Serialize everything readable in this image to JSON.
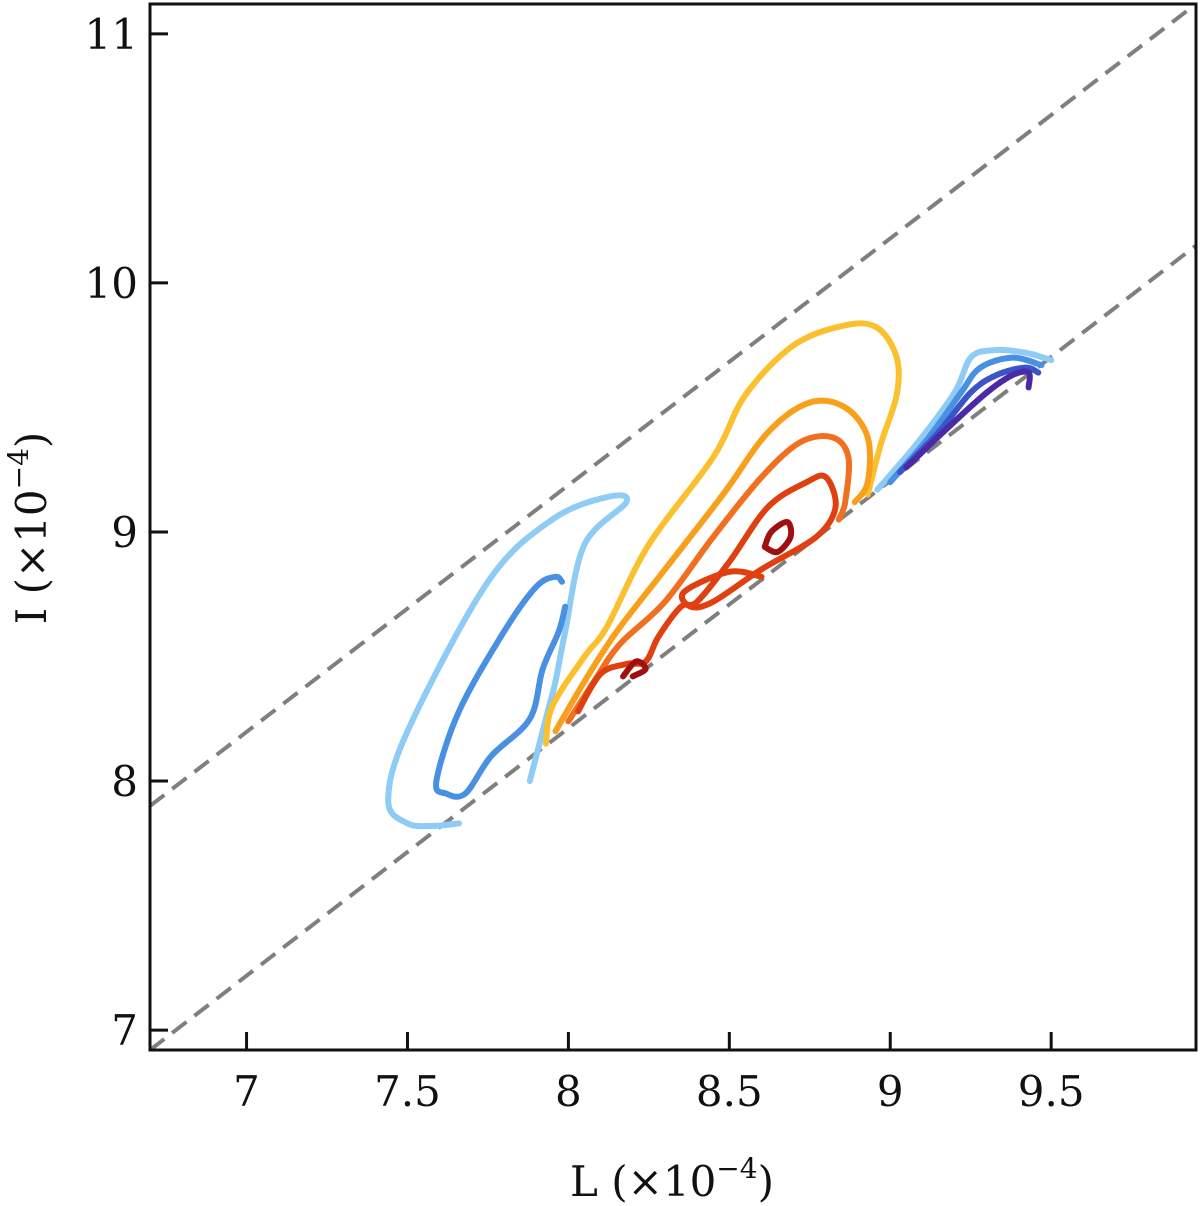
{
  "chart_data": {
    "type": "contour",
    "xlabel": "L (×10",
    "xlabel_exp": "−4",
    "xlabel_close": ")",
    "ylabel": "I (×10",
    "ylabel_exp": "−4",
    "ylabel_close": ")",
    "xlim": [
      6.7,
      9.95
    ],
    "ylim": [
      6.92,
      11.12
    ],
    "xticks": [
      7,
      7.5,
      8,
      8.5,
      9,
      9.5
    ],
    "xtick_labels": [
      "7",
      "7.5",
      "8",
      "8.5",
      "9",
      "9.5"
    ],
    "yticks": [
      7,
      8,
      9,
      10,
      11
    ],
    "ytick_labels": [
      "7",
      "8",
      "9",
      "10",
      "11"
    ],
    "grid": false,
    "reference_lines": [
      {
        "style": "dashed",
        "color": "#7f7f7f",
        "points": [
          [
            6.7,
            7.9
          ],
          [
            9.95,
            11.12
          ]
        ]
      },
      {
        "style": "dashed",
        "color": "#7f7f7f",
        "points": [
          [
            6.7,
            6.92
          ],
          [
            9.95,
            10.15
          ]
        ]
      }
    ],
    "contours": [
      {
        "group": "left-blue",
        "level": 1,
        "color": "#8ecbf5",
        "points": [
          [
            7.88,
            8.0
          ],
          [
            7.94,
            8.3
          ],
          [
            7.96,
            8.4
          ],
          [
            7.99,
            8.6
          ],
          [
            8.05,
            8.95
          ],
          [
            8.18,
            9.12
          ],
          [
            8.12,
            9.14
          ],
          [
            7.95,
            9.05
          ],
          [
            7.75,
            8.8
          ],
          [
            7.5,
            8.2
          ],
          [
            7.44,
            7.92
          ],
          [
            7.5,
            7.83
          ],
          [
            7.58,
            7.82
          ],
          [
            7.66,
            7.83
          ]
        ]
      },
      {
        "group": "left-blue",
        "level": 2,
        "color": "#4a90e2",
        "points": [
          [
            7.98,
            8.8
          ],
          [
            7.96,
            8.82
          ],
          [
            7.9,
            8.78
          ],
          [
            7.8,
            8.6
          ],
          [
            7.66,
            8.28
          ],
          [
            7.59,
            8.0
          ],
          [
            7.62,
            7.95
          ],
          [
            7.68,
            7.95
          ],
          [
            7.76,
            8.1
          ],
          [
            7.88,
            8.25
          ],
          [
            7.92,
            8.45
          ],
          [
            7.97,
            8.6
          ],
          [
            7.99,
            8.7
          ]
        ]
      },
      {
        "group": "center-warm",
        "level": 1,
        "color": "#fbc02d",
        "points": [
          [
            7.93,
            8.15
          ],
          [
            7.95,
            8.3
          ],
          [
            8.05,
            8.5
          ],
          [
            8.12,
            8.62
          ],
          [
            8.25,
            8.95
          ],
          [
            8.45,
            9.3
          ],
          [
            8.55,
            9.55
          ],
          [
            8.7,
            9.75
          ],
          [
            8.86,
            9.83
          ],
          [
            8.96,
            9.82
          ],
          [
            9.02,
            9.7
          ],
          [
            9.02,
            9.55
          ],
          [
            8.97,
            9.35
          ],
          [
            8.93,
            9.15
          ]
        ]
      },
      {
        "group": "center-warm",
        "level": 2,
        "color": "#f8a01c",
        "points": [
          [
            7.96,
            8.2
          ],
          [
            8.05,
            8.4
          ],
          [
            8.15,
            8.6
          ],
          [
            8.3,
            8.85
          ],
          [
            8.48,
            9.15
          ],
          [
            8.62,
            9.4
          ],
          [
            8.75,
            9.52
          ],
          [
            8.86,
            9.5
          ],
          [
            8.93,
            9.38
          ],
          [
            8.93,
            9.2
          ],
          [
            8.89,
            9.12
          ]
        ]
      },
      {
        "group": "center-warm",
        "level": 3,
        "color": "#f07020",
        "points": [
          [
            8.0,
            8.24
          ],
          [
            8.08,
            8.4
          ],
          [
            8.16,
            8.55
          ],
          [
            8.3,
            8.72
          ],
          [
            8.45,
            8.98
          ],
          [
            8.6,
            9.22
          ],
          [
            8.72,
            9.36
          ],
          [
            8.82,
            9.38
          ],
          [
            8.87,
            9.3
          ],
          [
            8.86,
            9.12
          ],
          [
            8.84,
            9.05
          ]
        ]
      },
      {
        "group": "center-warm",
        "level": 4,
        "color": "#e04010",
        "points": [
          [
            8.03,
            8.28
          ],
          [
            8.1,
            8.43
          ],
          [
            8.18,
            8.47
          ],
          [
            8.24,
            8.48
          ],
          [
            8.28,
            8.58
          ],
          [
            8.35,
            8.7
          ],
          [
            8.4,
            8.72
          ],
          [
            8.5,
            8.88
          ],
          [
            8.62,
            9.1
          ],
          [
            8.74,
            9.2
          ],
          [
            8.8,
            9.22
          ],
          [
            8.83,
            9.1
          ],
          [
            8.77,
            8.98
          ],
          [
            8.6,
            8.85
          ],
          [
            8.45,
            8.72
          ],
          [
            8.38,
            8.7
          ],
          [
            8.36,
            8.76
          ],
          [
            8.5,
            8.84
          ],
          [
            8.6,
            8.82
          ]
        ]
      },
      {
        "group": "center-warm",
        "level": 5,
        "color": "#a01010",
        "points": [
          [
            8.61,
            8.94
          ],
          [
            8.63,
            9.0
          ],
          [
            8.68,
            9.04
          ],
          [
            8.69,
            8.98
          ],
          [
            8.65,
            8.92
          ],
          [
            8.61,
            8.94
          ]
        ]
      },
      {
        "group": "center-warm",
        "level": 6,
        "color": "#a01010",
        "points": [
          [
            8.17,
            8.42
          ],
          [
            8.21,
            8.48
          ],
          [
            8.24,
            8.45
          ],
          [
            8.2,
            8.42
          ]
        ]
      },
      {
        "group": "right-blue",
        "level": 1,
        "color": "#8ecbf5",
        "points": [
          [
            8.96,
            9.17
          ],
          [
            9.08,
            9.35
          ],
          [
            9.2,
            9.56
          ],
          [
            9.25,
            9.7
          ],
          [
            9.32,
            9.73
          ],
          [
            9.42,
            9.72
          ],
          [
            9.5,
            9.69
          ]
        ]
      },
      {
        "group": "right-blue",
        "level": 2,
        "color": "#4a90e2",
        "points": [
          [
            9.0,
            9.2
          ],
          [
            9.12,
            9.38
          ],
          [
            9.22,
            9.56
          ],
          [
            9.28,
            9.66
          ],
          [
            9.38,
            9.7
          ],
          [
            9.47,
            9.67
          ]
        ]
      },
      {
        "group": "right-blue",
        "level": 3,
        "color": "#3a55c8",
        "points": [
          [
            9.03,
            9.24
          ],
          [
            9.15,
            9.4
          ],
          [
            9.25,
            9.56
          ],
          [
            9.33,
            9.63
          ],
          [
            9.42,
            9.66
          ],
          [
            9.46,
            9.64
          ]
        ]
      },
      {
        "group": "right-blue",
        "level": 4,
        "color": "#4b2aa8",
        "points": [
          [
            9.05,
            9.26
          ],
          [
            9.18,
            9.42
          ],
          [
            9.3,
            9.56
          ],
          [
            9.38,
            9.63
          ],
          [
            9.43,
            9.64
          ],
          [
            9.43,
            9.58
          ]
        ]
      }
    ]
  }
}
